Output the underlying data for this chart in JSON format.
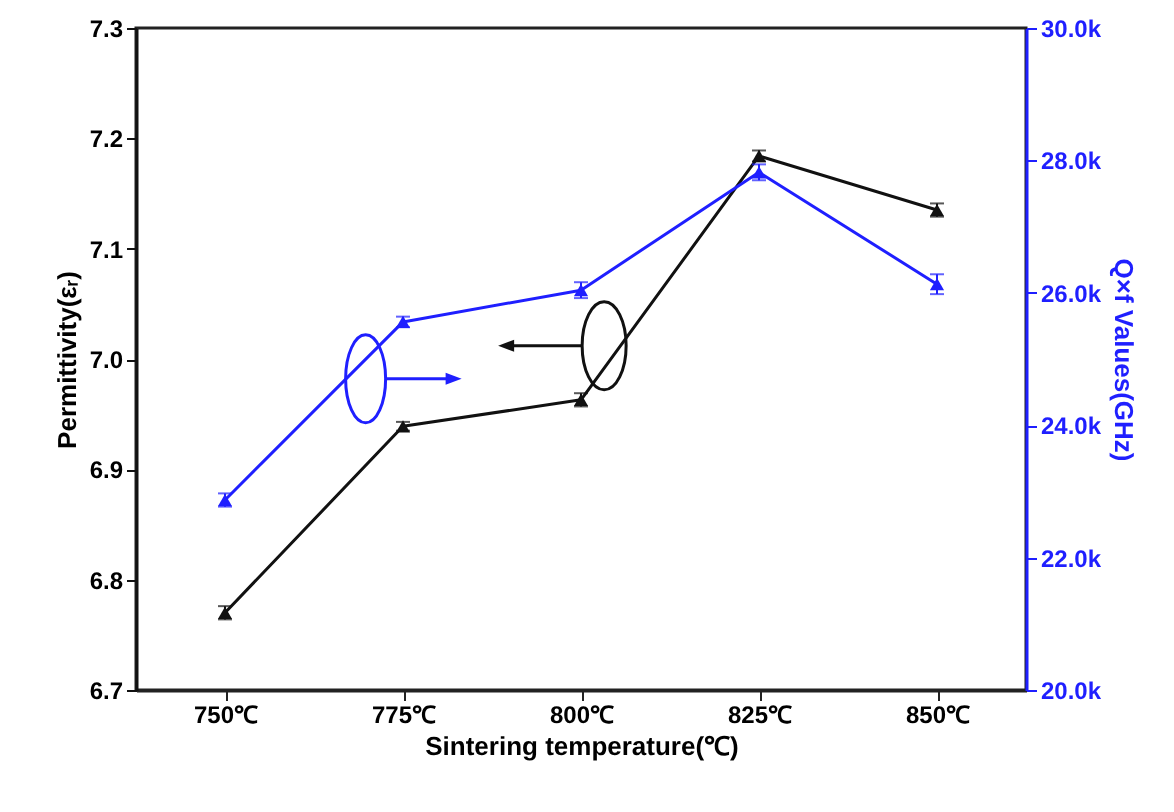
{
  "chart_data": {
    "type": "line",
    "xlabel": "Sintering temperature(℃)",
    "ylabel": "Permittivity(εᵣ)",
    "y2label": "Q×f Values(GHz)",
    "categories": [
      "750℃",
      "775℃",
      "800℃",
      "825℃",
      "850℃"
    ],
    "series": [
      {
        "color": "#111111",
        "values": [
          6.77,
          6.939,
          6.963,
          7.184,
          7.135
        ],
        "errors": [
          0.006,
          0.004,
          0.006,
          0.005,
          0.006
        ],
        "marker": "triangle"
      },
      {
        "color": "#1f1fff",
        "axis": "y2",
        "values": [
          22870,
          25560,
          26040,
          27820,
          26130
        ],
        "errors": [
          100,
          80,
          120,
          120,
          150
        ],
        "marker": "triangle"
      }
    ],
    "ylim": [
      6.7,
      7.3
    ],
    "yticks": [
      6.7,
      6.8,
      6.9,
      {
        "value": 7,
        "label": "7.0"
      },
      7.1,
      7.2,
      7.3
    ],
    "y2lim": [
      20000,
      30000
    ],
    "y2ticks": [
      {
        "value": 20000,
        "label": "20.0k"
      },
      {
        "value": 22000,
        "label": "22.0k"
      },
      {
        "value": 24000,
        "label": "24.0k"
      },
      {
        "value": 26000,
        "label": "26.0k"
      },
      {
        "value": 28000,
        "label": "28.0k"
      },
      {
        "value": 30000,
        "label": "30.0k"
      }
    ],
    "grid": false,
    "line_style": "solid"
  }
}
